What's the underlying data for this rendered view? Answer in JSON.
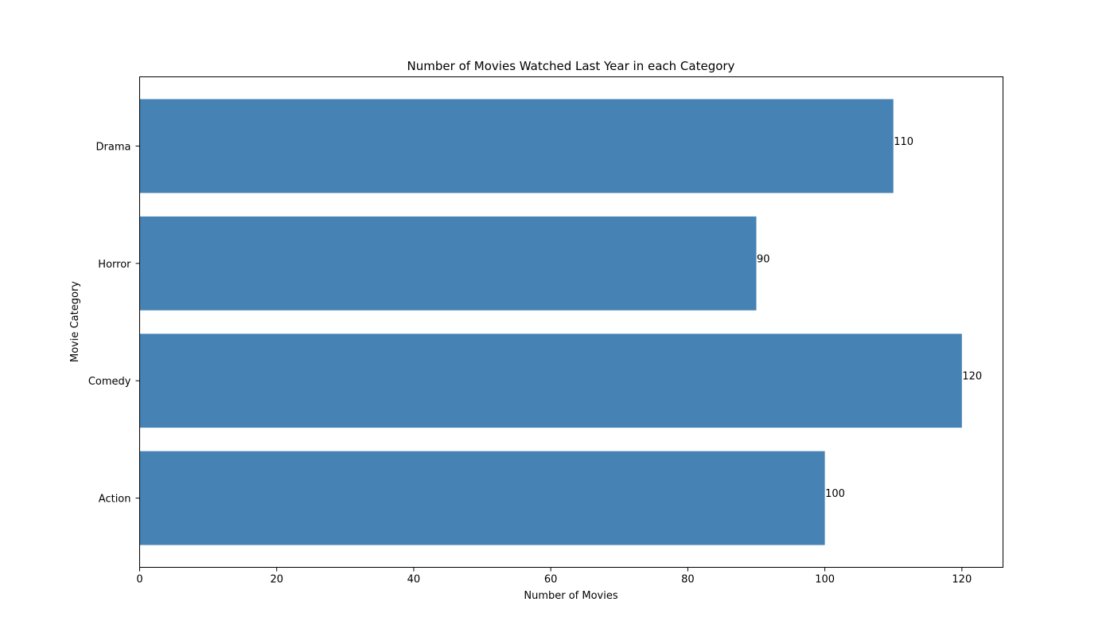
{
  "chart_data": {
    "type": "bar",
    "orientation": "horizontal",
    "title": "Number of Movies Watched Last Year in each Category",
    "xlabel": "Number of Movies",
    "ylabel": "Movie Category",
    "categories": [
      "Action",
      "Comedy",
      "Horror",
      "Drama"
    ],
    "values": [
      100,
      120,
      90,
      110
    ],
    "data_labels": [
      "100",
      "120",
      "90",
      "110"
    ],
    "xlim": [
      0,
      126
    ],
    "x_ticks": [
      0,
      20,
      40,
      60,
      80,
      100,
      120
    ],
    "bar_color": "#4682b4",
    "grid": false,
    "legend": "none"
  }
}
